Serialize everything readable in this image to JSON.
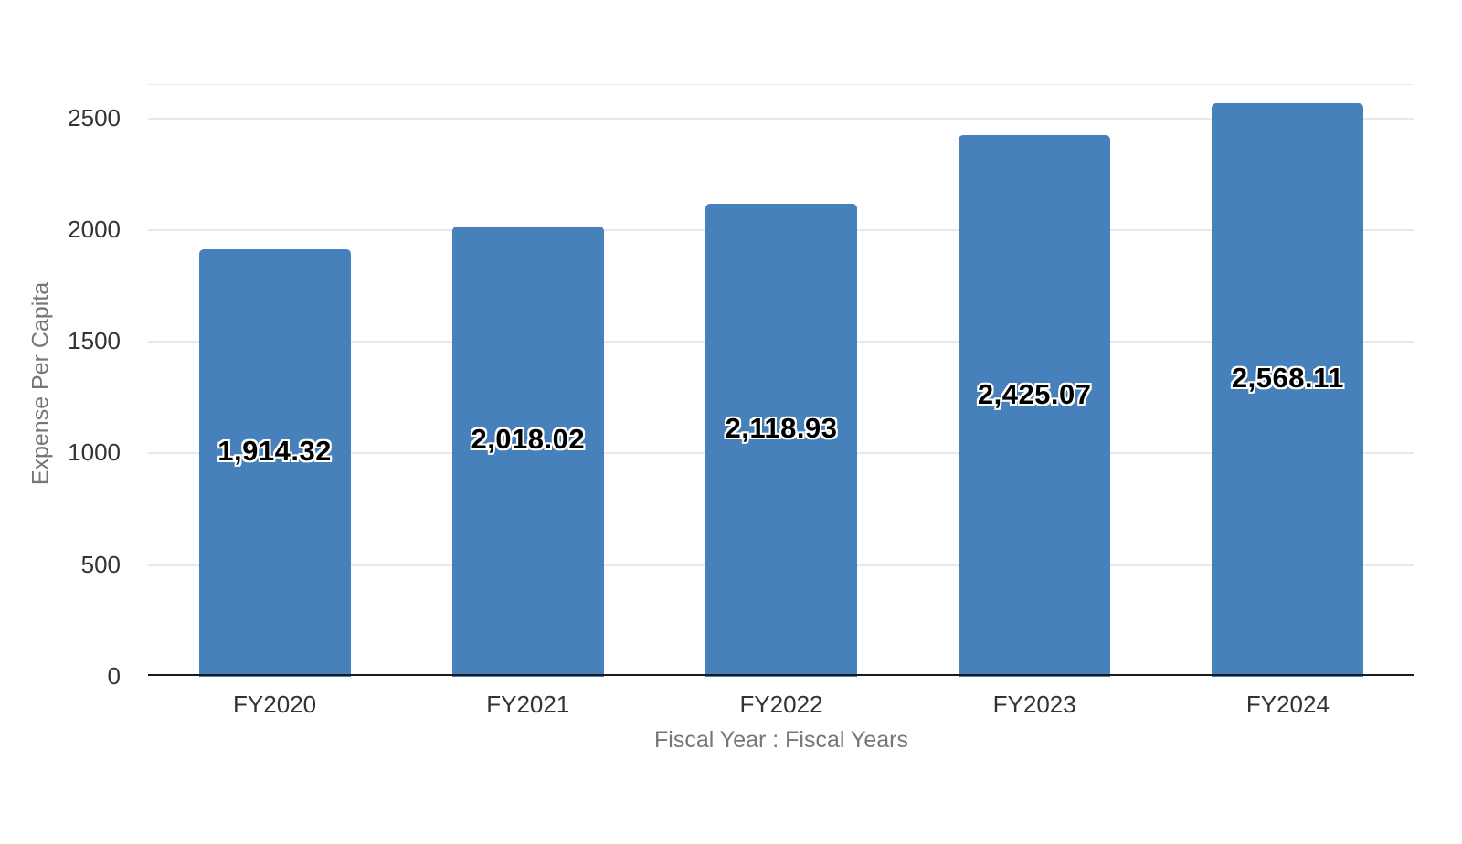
{
  "chart_data": {
    "type": "bar",
    "title": "",
    "categories": [
      "FY2020",
      "FY2021",
      "FY2022",
      "FY2023",
      "FY2024"
    ],
    "values": [
      1914.32,
      2018.02,
      2118.93,
      2425.07,
      2568.11
    ],
    "value_labels": [
      "1,914.32",
      "2,018.02",
      "2,118.93",
      "2,425.07",
      "2,568.11"
    ],
    "xlabel": "Fiscal Year : Fiscal Years",
    "ylabel": "Expense Per Capita",
    "ylim": [
      0,
      2650
    ],
    "yticks": [
      0,
      500,
      1000,
      1500,
      2000,
      2500
    ],
    "grid": true,
    "legend": false
  },
  "theme": {
    "background": "#ffffff",
    "bar_color": "#4681BC",
    "gridline_color": "#e8e8e8",
    "pane_border_color": "#ececec",
    "axis_line_color": "#1a1a1a",
    "tick_label_color": "#333333",
    "axis_title_color": "#767676",
    "bar_label_color": "#000000",
    "bar_label_halo_color": "#ffffff"
  }
}
